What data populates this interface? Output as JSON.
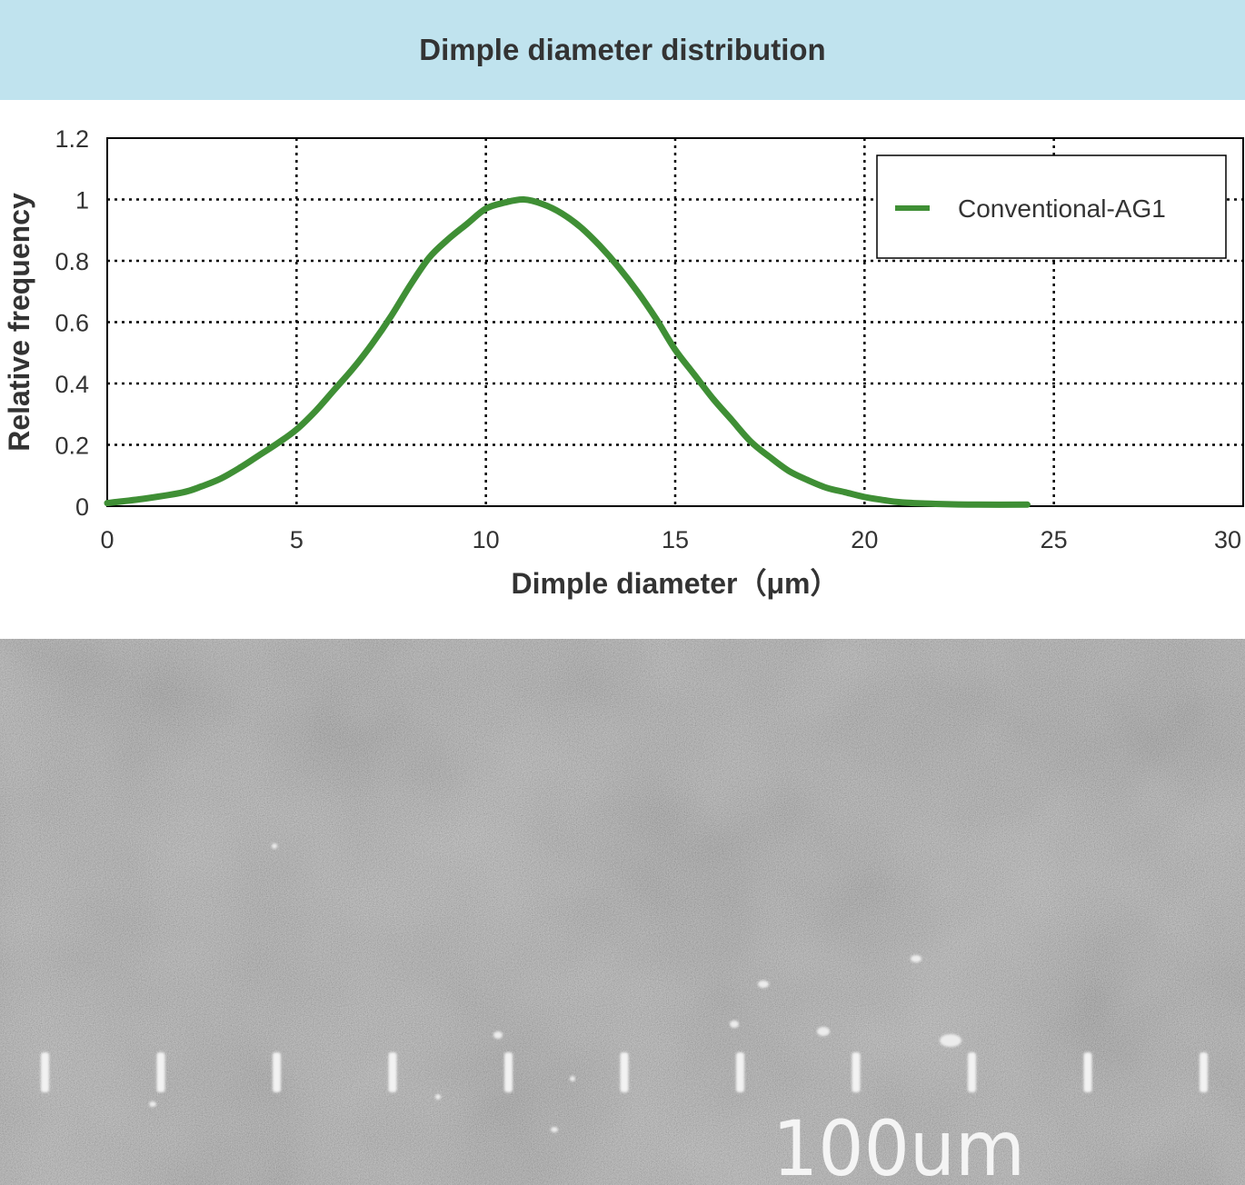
{
  "header": {
    "title": "Dimple diameter distribution"
  },
  "chart_data": {
    "type": "line",
    "title": "Dimple diameter distribution",
    "xlabel": "Dimple diameter（μm）",
    "ylabel": "Relative frequency",
    "xlim": [
      0,
      30
    ],
    "ylim": [
      0,
      1.2
    ],
    "xticks": [
      0,
      5,
      10,
      15,
      20,
      25,
      30
    ],
    "yticks": [
      0,
      0.2,
      0.4,
      0.6,
      0.8,
      1,
      1.2
    ],
    "xtick_labels": [
      "0",
      "5",
      "10",
      "15",
      "20",
      "25",
      "30"
    ],
    "ytick_labels": [
      "0",
      "0.2",
      "0.4",
      "0.6",
      "0.8",
      "1",
      "1.2"
    ],
    "grid": true,
    "legend_position": "top-right",
    "series": [
      {
        "name": "Conventional-AG1",
        "color": "#3f8f35",
        "x": [
          0,
          1,
          2,
          2.5,
          3,
          3.5,
          4,
          4.5,
          5,
          5.5,
          6,
          6.5,
          7,
          7.5,
          8,
          8.5,
          9,
          9.5,
          10,
          10.5,
          11,
          11.5,
          12,
          12.5,
          13,
          13.5,
          14,
          14.5,
          15,
          15.5,
          16,
          16.5,
          17,
          17.5,
          18,
          18.5,
          19,
          19.5,
          20,
          20.5,
          21,
          22,
          23,
          24.3
        ],
        "y": [
          0.01,
          0.025,
          0.045,
          0.065,
          0.09,
          0.125,
          0.165,
          0.205,
          0.25,
          0.31,
          0.38,
          0.45,
          0.53,
          0.62,
          0.72,
          0.81,
          0.87,
          0.92,
          0.97,
          0.99,
          1.0,
          0.985,
          0.955,
          0.91,
          0.85,
          0.78,
          0.7,
          0.61,
          0.51,
          0.43,
          0.35,
          0.28,
          0.21,
          0.16,
          0.115,
          0.085,
          0.06,
          0.045,
          0.03,
          0.02,
          0.012,
          0.007,
          0.005,
          0.005
        ]
      }
    ]
  },
  "micrograph": {
    "scale_label": "100um"
  }
}
